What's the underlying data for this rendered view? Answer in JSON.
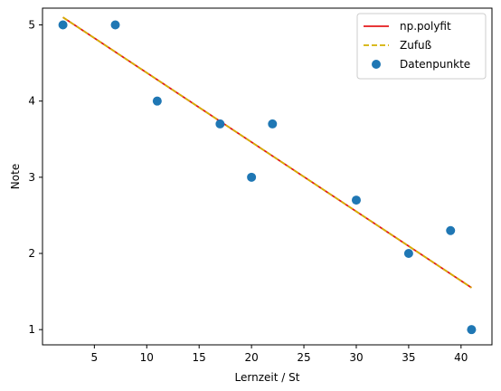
{
  "chart_data": {
    "type": "scatter",
    "title": "",
    "xlabel": "Lernzeit / St",
    "ylabel": "Note",
    "xlim": [
      0.05,
      42.95
    ],
    "ylim": [
      0.8,
      5.22
    ],
    "xticks": [
      5,
      10,
      15,
      20,
      25,
      30,
      35,
      40
    ],
    "yticks": [
      1,
      2,
      3,
      4,
      5
    ],
    "grid": false,
    "legend_position": "top-right",
    "colors": {
      "fit": "#e41a1c",
      "zufuss": "#d4b000",
      "points": "#1f77b4"
    },
    "series": [
      {
        "name": "Datenpunkte",
        "kind": "scatter",
        "x": [
          2,
          7,
          11,
          17,
          20,
          22,
          30,
          35,
          39,
          41
        ],
        "y": [
          5,
          5,
          4,
          3.7,
          3,
          3.7,
          2.7,
          2,
          2.3,
          1
        ]
      },
      {
        "name": "np.polyfit",
        "kind": "line",
        "x": [
          2,
          41
        ],
        "y": [
          5.1,
          1.55
        ]
      },
      {
        "name": "Zufuß",
        "kind": "dashed-line",
        "x": [
          2,
          41
        ],
        "y": [
          5.1,
          1.55
        ]
      }
    ]
  }
}
